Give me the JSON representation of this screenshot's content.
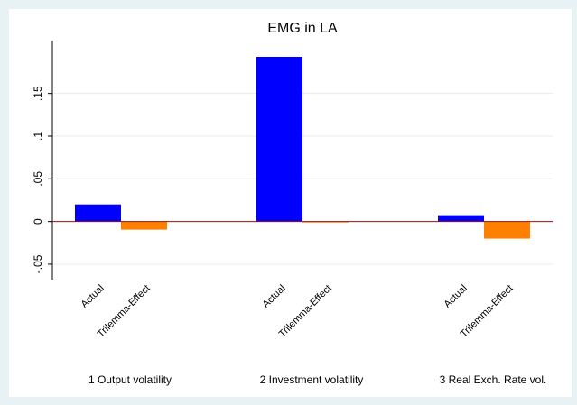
{
  "chart_data": {
    "type": "bar",
    "title": "EMG in LA",
    "categories": [
      "1 Output volatility",
      "2 Investment volatility",
      "3 Real Exch. Rate vol."
    ],
    "series": [
      {
        "name": "Actual",
        "color": "#0000ff",
        "values": [
          0.02,
          0.193,
          0.0074
        ]
      },
      {
        "name": "Trilemma-Effect",
        "color": "#ff8000",
        "values": [
          -0.0095,
          -0.001,
          -0.02
        ]
      }
    ],
    "ylim": [
      -0.068,
      0.212
    ],
    "yticks": [
      {
        "value": -0.05,
        "label": "-.05"
      },
      0,
      {
        "value": 0.05,
        "label": ".05"
      },
      {
        "value": 0.1,
        "label": ".1"
      },
      {
        "value": 0.15,
        "label": ".15"
      }
    ],
    "grid": true,
    "zero_line_color": "#a01010"
  }
}
